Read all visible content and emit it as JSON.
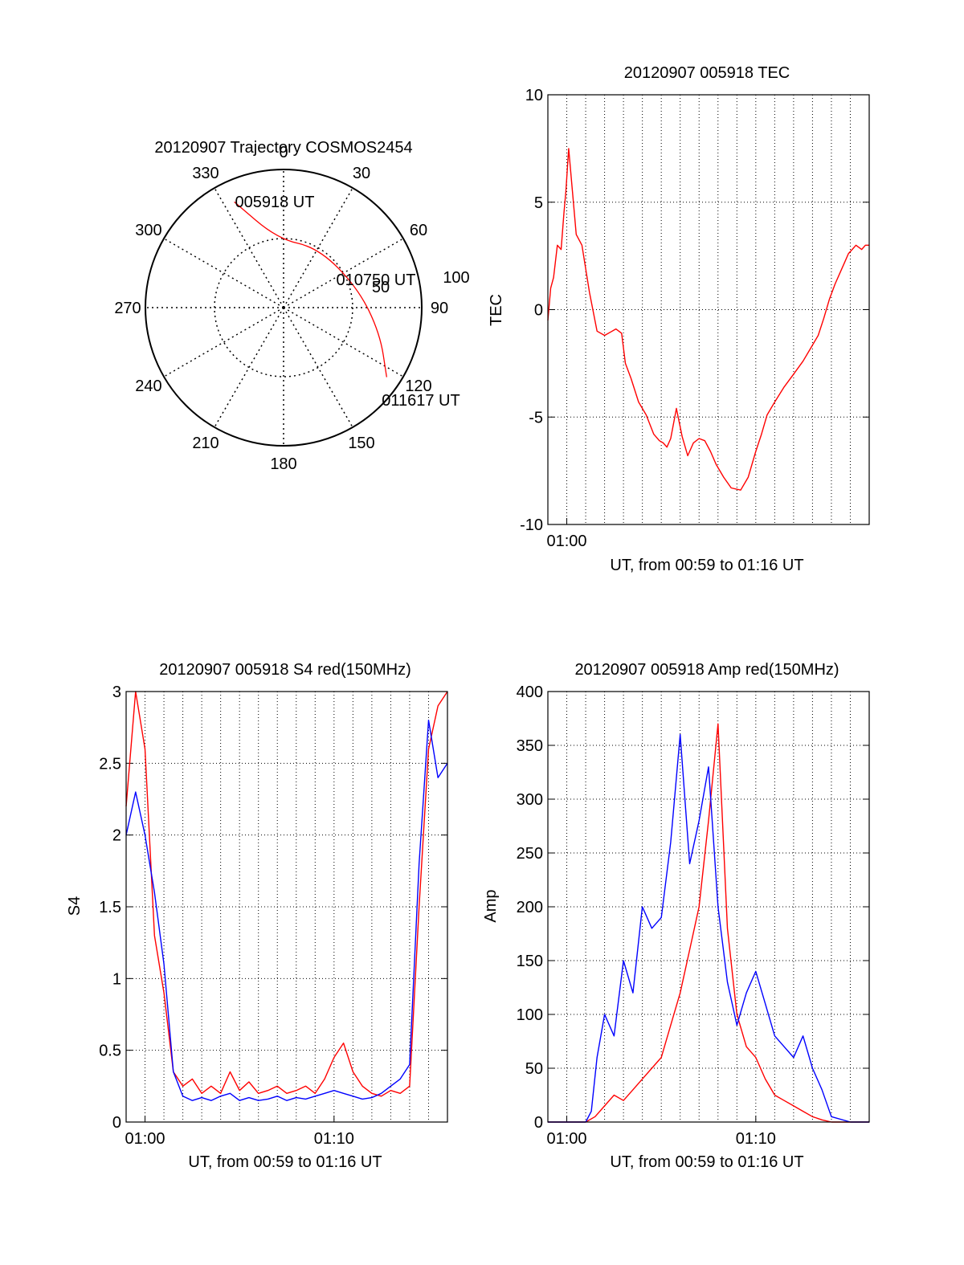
{
  "chart_data": [
    {
      "type": "polar",
      "title": "20120907 Trajectory COSMOS2454",
      "azimuth_labels": [
        "0",
        "30",
        "60",
        "90",
        "120",
        "150",
        "180",
        "210",
        "240",
        "270",
        "300",
        "330"
      ],
      "radial_ring_labels": [
        "50",
        "100"
      ],
      "track_color": "#ff0000",
      "track": [
        {
          "time": "005918 UT",
          "azimuth": 335,
          "elevation": 14
        },
        {
          "time": "",
          "azimuth": 355,
          "elevation": 45
        },
        {
          "time": "",
          "azimuth": 30,
          "elevation": 45
        },
        {
          "time": "010750 UT",
          "azimuth": 75,
          "elevation": 40
        },
        {
          "time": "",
          "azimuth": 105,
          "elevation": 25
        },
        {
          "time": "011617 UT",
          "azimuth": 124,
          "elevation": 9
        }
      ],
      "annotations": [
        "005918 UT",
        "010750 UT",
        "011617 UT"
      ]
    },
    {
      "type": "line",
      "title": "20120907 005918 TEC",
      "xlabel": "UT, from 00:59 to 01:16 UT",
      "ylabel": "TEC",
      "xlim": [
        0,
        17
      ],
      "ylim": [
        -10,
        10
      ],
      "yticks": [
        -10,
        -5,
        0,
        5,
        10
      ],
      "xticks": [
        {
          "value": 1,
          "label": "01:00"
        }
      ],
      "grid": true,
      "series": [
        {
          "color": "#ff0000",
          "x": [
            0,
            0.15,
            0.3,
            0.5,
            0.7,
            0.85,
            0.95,
            1.1,
            1.3,
            1.5,
            1.8,
            2.2,
            2.6,
            3.0,
            3.4,
            3.6,
            3.9,
            4.1,
            4.4,
            4.8,
            5.2,
            5.6,
            5.9,
            6.1,
            6.3,
            6.5,
            6.8,
            7.1,
            7.4,
            7.7,
            8.0,
            8.3,
            8.6,
            8.9,
            9.3,
            9.7,
            10.2,
            10.6,
            11.0,
            11.3,
            11.6,
            12.0,
            12.5,
            13.0,
            13.5,
            13.9,
            14.3,
            14.6,
            14.9,
            15.2,
            15.5,
            15.7,
            15.9,
            16.1,
            16.3,
            16.6,
            16.8,
            17.0
          ],
          "y": [
            -0.5,
            1.0,
            1.5,
            3.0,
            2.8,
            4.5,
            5.5,
            7.5,
            5.5,
            3.5,
            3.0,
            0.8,
            -1.0,
            -1.2,
            -1.0,
            -0.9,
            -1.1,
            -2.5,
            -3.2,
            -4.3,
            -4.9,
            -5.8,
            -6.1,
            -6.2,
            -6.4,
            -6.0,
            -4.6,
            -5.9,
            -6.8,
            -6.2,
            -6.0,
            -6.1,
            -6.6,
            -7.2,
            -7.8,
            -8.3,
            -8.4,
            -7.8,
            -6.6,
            -5.8,
            -4.9,
            -4.3,
            -3.6,
            -3.0,
            -2.4,
            -1.8,
            -1.2,
            -0.4,
            0.5,
            1.2,
            1.8,
            2.2,
            2.6,
            2.8,
            3.0,
            2.8,
            3.0,
            3.0
          ]
        }
      ]
    },
    {
      "type": "line",
      "title": "20120907 005918 S4 red(150MHz)",
      "xlabel": "UT, from 00:59 to 01:16 UT",
      "ylabel": "S4",
      "xlim": [
        0,
        17
      ],
      "ylim": [
        0,
        3
      ],
      "yticks": [
        0,
        0.5,
        1,
        1.5,
        2,
        2.5,
        3
      ],
      "xticks": [
        {
          "value": 1,
          "label": "01:00"
        },
        {
          "value": 11,
          "label": "01:10"
        }
      ],
      "grid": true,
      "series": [
        {
          "color": "#ff0000",
          "x": [
            0,
            0.5,
            1.0,
            1.5,
            2.0,
            2.5,
            3.0,
            3.5,
            4.0,
            4.5,
            5.0,
            5.5,
            6.0,
            6.5,
            7.0,
            7.5,
            8.0,
            8.5,
            9.0,
            9.5,
            10.0,
            10.5,
            11.0,
            11.5,
            12.0,
            12.5,
            13.0,
            13.5,
            14.0,
            14.5,
            15.0,
            15.5,
            16.0,
            16.5,
            17.0
          ],
          "y": [
            2.2,
            3.0,
            2.6,
            1.3,
            0.9,
            0.35,
            0.25,
            0.3,
            0.2,
            0.25,
            0.2,
            0.35,
            0.22,
            0.28,
            0.2,
            0.22,
            0.25,
            0.2,
            0.22,
            0.25,
            0.2,
            0.3,
            0.45,
            0.55,
            0.35,
            0.25,
            0.2,
            0.18,
            0.22,
            0.2,
            0.25,
            1.5,
            2.6,
            2.9,
            3.0
          ]
        },
        {
          "color": "#0000ff",
          "x": [
            0,
            0.5,
            1.0,
            1.5,
            2.0,
            2.5,
            3.0,
            3.5,
            4.0,
            4.5,
            5.0,
            5.5,
            6.0,
            6.5,
            7.0,
            7.5,
            8.0,
            8.5,
            9.0,
            9.5,
            10.0,
            10.5,
            11.0,
            11.5,
            12.0,
            12.5,
            13.0,
            13.5,
            14.0,
            14.5,
            15.0,
            15.5,
            16.0,
            16.5,
            17.0
          ],
          "y": [
            2.0,
            2.3,
            2.0,
            1.6,
            1.1,
            0.35,
            0.18,
            0.15,
            0.17,
            0.15,
            0.18,
            0.2,
            0.15,
            0.17,
            0.15,
            0.16,
            0.18,
            0.15,
            0.17,
            0.16,
            0.18,
            0.2,
            0.22,
            0.2,
            0.18,
            0.16,
            0.17,
            0.2,
            0.25,
            0.3,
            0.4,
            1.8,
            2.8,
            2.4,
            2.5
          ]
        }
      ]
    },
    {
      "type": "line",
      "title": "20120907 005918 Amp red(150MHz)",
      "xlabel": "UT, from 00:59 to 01:16 UT",
      "ylabel": "Amp",
      "xlim": [
        0,
        17
      ],
      "ylim": [
        0,
        400
      ],
      "yticks": [
        0,
        50,
        100,
        150,
        200,
        250,
        300,
        350,
        400
      ],
      "xticks": [
        {
          "value": 1,
          "label": "01:00"
        },
        {
          "value": 11,
          "label": "01:10"
        }
      ],
      "grid": true,
      "series": [
        {
          "color": "#ff0000",
          "x": [
            0,
            1,
            2,
            2.5,
            3,
            3.5,
            4,
            4.5,
            5,
            5.5,
            6,
            6.5,
            7,
            7.5,
            8,
            8.5,
            9,
            9.5,
            10,
            10.5,
            11,
            11.5,
            12,
            12.5,
            13,
            13.5,
            14,
            14.5,
            15,
            16,
            17
          ],
          "y": [
            0,
            0,
            0,
            5,
            15,
            25,
            20,
            30,
            40,
            50,
            60,
            90,
            120,
            160,
            200,
            280,
            370,
            180,
            100,
            70,
            60,
            40,
            25,
            20,
            15,
            10,
            5,
            2,
            0,
            0,
            0
          ]
        },
        {
          "color": "#0000ff",
          "x": [
            0,
            1,
            2,
            2.3,
            2.6,
            3,
            3.5,
            4,
            4.5,
            5,
            5.5,
            6,
            6.5,
            7,
            7.5,
            8,
            8.5,
            9,
            9.5,
            10,
            10.5,
            11,
            11.5,
            12,
            12.5,
            13,
            13.5,
            14,
            14.5,
            15,
            16,
            17
          ],
          "y": [
            0,
            0,
            0,
            10,
            60,
            100,
            80,
            150,
            120,
            200,
            180,
            190,
            260,
            360,
            240,
            280,
            330,
            200,
            130,
            90,
            120,
            140,
            110,
            80,
            70,
            60,
            80,
            50,
            30,
            5,
            0,
            0
          ]
        }
      ]
    }
  ]
}
